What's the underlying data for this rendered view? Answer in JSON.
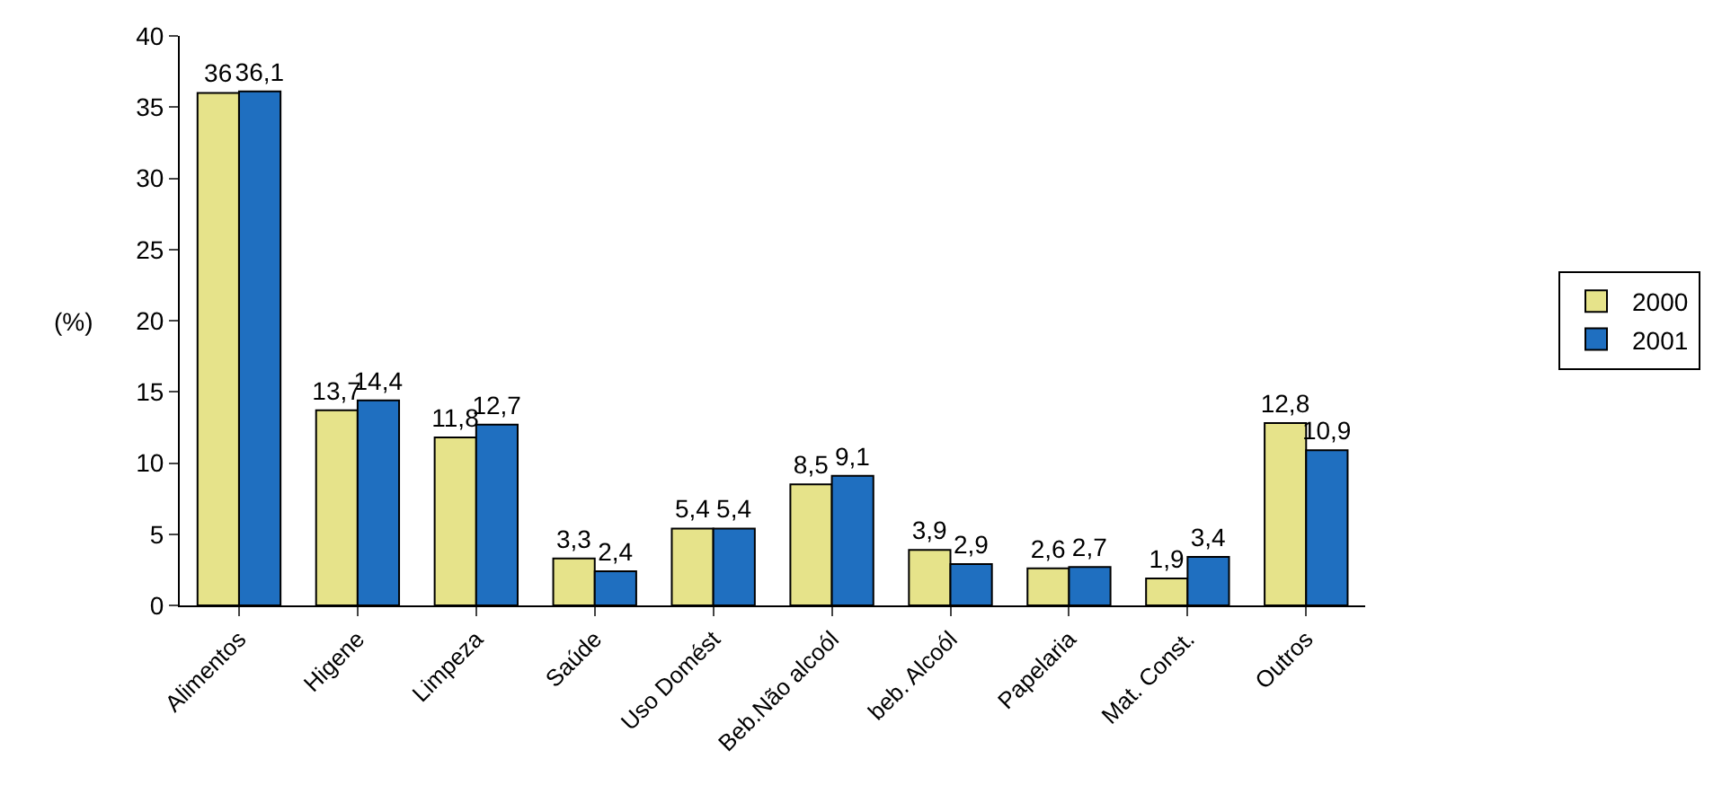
{
  "chart_data": {
    "type": "bar",
    "ylabel": "(%)",
    "categories": [
      "Alimentos",
      "Higene",
      "Limpeza",
      "Saúde",
      "Uso Domést",
      "Beb.Não alcoól",
      "beb. Alcoól",
      "Papelaria",
      "Mat. Const.",
      "Outros"
    ],
    "series": [
      {
        "name": "2000",
        "color": "#e6e38a",
        "values": [
          36,
          13.7,
          11.8,
          3.3,
          5.4,
          8.5,
          3.9,
          2.6,
          1.9,
          12.8
        ],
        "value_labels": [
          "36",
          "13,7",
          "11,8",
          "3,3",
          "5,4",
          "8,5",
          "3,9",
          "2,6",
          "1,9",
          "12,8"
        ]
      },
      {
        "name": "2001",
        "color": "#1f6fc0",
        "values": [
          36.1,
          14.4,
          12.7,
          2.4,
          5.4,
          9.1,
          2.9,
          2.7,
          3.4,
          10.9
        ],
        "value_labels": [
          "36,1",
          "14,4",
          "12,7",
          "2,4",
          "5,4",
          "9,1",
          "2,9",
          "2,7",
          "3,4",
          "10,9"
        ]
      }
    ],
    "ylim": [
      0,
      40
    ],
    "yticks": [
      0,
      5,
      10,
      15,
      20,
      25,
      30,
      35,
      40
    ],
    "legend": "right"
  }
}
